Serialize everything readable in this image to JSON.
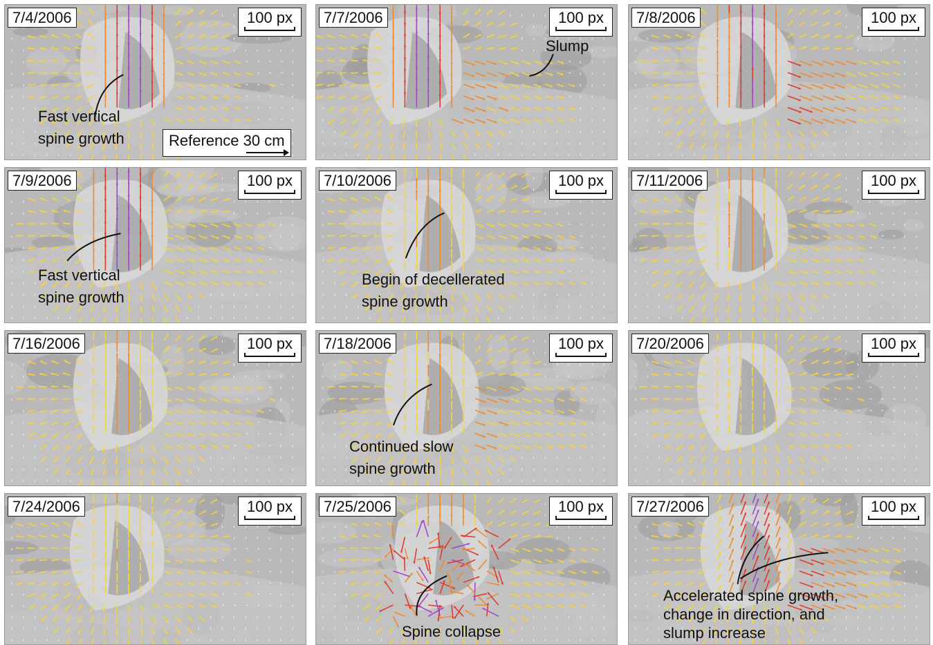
{
  "scale_label": "100 px",
  "colors": {
    "slow": "#f5d43a",
    "medium": "#f08a2a",
    "fast": "#e23a2a",
    "fastest": "#a048c8",
    "background": "#b9b9b9"
  },
  "panels": [
    {
      "date": "7/4/2006",
      "annotation": [
        "Fast vertical",
        "spine growth"
      ],
      "reference": {
        "label": "Reference",
        "value": "30 cm"
      }
    },
    {
      "date": "7/7/2006",
      "annotation": [
        "Slump"
      ]
    },
    {
      "date": "7/8/2006"
    },
    {
      "date": "7/9/2006",
      "annotation": [
        "Fast vertical",
        "spine growth"
      ]
    },
    {
      "date": "7/10/2006",
      "annotation": [
        "Begin of decellerated",
        "spine growth"
      ]
    },
    {
      "date": "7/11/2006"
    },
    {
      "date": "7/16/2006"
    },
    {
      "date": "7/18/2006",
      "annotation": [
        "Continued slow",
        "spine growth"
      ]
    },
    {
      "date": "7/20/2006"
    },
    {
      "date": "7/24/2006"
    },
    {
      "date": "7/25/2006",
      "annotation": [
        "Spine collapse"
      ]
    },
    {
      "date": "7/27/2006",
      "annotation": [
        "Accelerated spine growth,",
        "change in direction, and",
        "slump increase"
      ]
    }
  ]
}
